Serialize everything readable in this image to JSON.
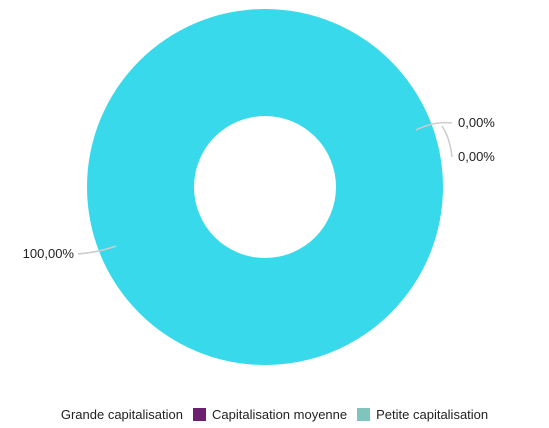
{
  "chart_data": {
    "type": "pie",
    "title": "",
    "donut": true,
    "categories": [
      "Grande capitalisation",
      "Capitalisation moyenne",
      "Petite capitalisation"
    ],
    "values": [
      100.0,
      0.0,
      0.0
    ],
    "data_labels": [
      "100,00%",
      "0,00%",
      "0,00%"
    ],
    "colors": [
      "#38d9ea",
      "#6d2070",
      "#7fc4bd"
    ],
    "legend_position": "bottom"
  }
}
